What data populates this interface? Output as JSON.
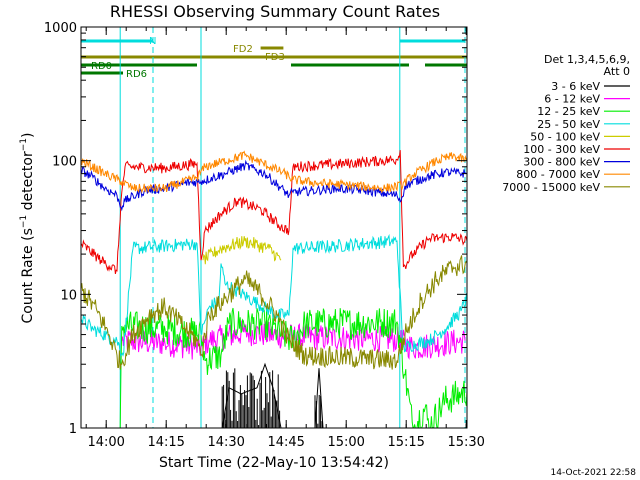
{
  "chart_data": {
    "type": "line",
    "title": "RHESSI Observing Summary Count Rates",
    "xlabel": "Start Time (22-May-10 13:54:42)",
    "ylabel": "Count Rate (s⁻¹ detector⁻¹)",
    "ylabel_main": "Count Rate (s",
    "ylabel_sup1": "−1",
    "ylabel_mid": " detector",
    "ylabel_sup2": "−1",
    "ylabel_end": ")",
    "x_unit": "minutes",
    "xlim": [
      -1.0,
      95.5
    ],
    "ylog": true,
    "ylim": [
      1,
      1000
    ],
    "x_ticks": [
      {
        "v": 5.3,
        "label": "14:00"
      },
      {
        "v": 20.3,
        "label": "14:15"
      },
      {
        "v": 35.3,
        "label": "14:30"
      },
      {
        "v": 50.3,
        "label": "14:45"
      },
      {
        "v": 65.3,
        "label": "15:00"
      },
      {
        "v": 80.3,
        "label": "15:15"
      },
      {
        "v": 95.3,
        "label": "15:30"
      }
    ],
    "y_ticks": [
      {
        "v": 1,
        "label": "1"
      },
      {
        "v": 10,
        "label": "10"
      },
      {
        "v": 100,
        "label": "100"
      },
      {
        "v": 1000,
        "label": "1000"
      }
    ],
    "legend": {
      "placement": "right",
      "header": [
        "Det 1,3,4,5,6,9,",
        "Att 0"
      ],
      "entries": [
        {
          "label": "3 - 6 keV",
          "color": "#000000"
        },
        {
          "label": "6 - 12 keV",
          "color": "#ff00ff"
        },
        {
          "label": "12 - 25 keV",
          "color": "#00ee00"
        },
        {
          "label": "25 - 50 keV",
          "color": "#00dddd"
        },
        {
          "label": "50 - 100 keV",
          "color": "#cccc00"
        },
        {
          "label": "100 - 300 keV",
          "color": "#ee0000"
        },
        {
          "label": "300 - 800 keV",
          "color": "#0000dd"
        },
        {
          "label": "800 - 7000 keV",
          "color": "#ff8800"
        },
        {
          "label": "7000 - 15000 keV",
          "color": "#888800"
        }
      ]
    },
    "vertical_lines": [
      {
        "x": 8.8,
        "style": "solid",
        "color": "#00dddd"
      },
      {
        "x": 17.0,
        "style": "dashed",
        "color": "#00dddd"
      },
      {
        "x": 29.0,
        "style": "solid",
        "color": "#00dddd"
      },
      {
        "x": 78.7,
        "style": "solid",
        "color": "#00dddd"
      },
      {
        "x": 95.0,
        "style": "dashed",
        "color": "#00dddd"
      }
    ],
    "flag_bars": [
      {
        "label": "N",
        "color": "#00dddd",
        "segments": [
          [
            -1.0,
            17.0
          ],
          [
            78.7,
            95.0
          ]
        ],
        "row": 0
      },
      {
        "label": "FD2",
        "color": "#888800",
        "segments": [
          [
            43.9,
            49.6
          ]
        ],
        "row": 1
      },
      {
        "label": "FD3",
        "color": "#888800",
        "segments": [
          [
            -1.0,
            95.5
          ]
        ],
        "row": 2
      },
      {
        "label": "RD0",
        "color": "#007700",
        "segments": [
          [
            -1.0,
            28.0
          ],
          [
            51.5,
            81.0
          ],
          [
            85.0,
            95.5
          ]
        ],
        "row": 3
      },
      {
        "label": "RD6",
        "color": "#007700",
        "segments": [
          [
            -1.0,
            9.5
          ]
        ],
        "row": 4
      }
    ],
    "series": [
      {
        "name": "3 - 6 keV",
        "color": "#000000",
        "noise": 0.0,
        "segments": [
          [
            [
              34.3,
              1.0
            ],
            [
              36.0,
              2.0
            ],
            [
              39.0,
              1.8
            ],
            [
              43.0,
              2.0
            ],
            [
              45.0,
              3.0
            ],
            [
              47.0,
              2.0
            ],
            [
              49.0,
              1.0
            ]
          ],
          [
            [
              57.5,
              1.0
            ],
            [
              58.5,
              2.8
            ],
            [
              59.5,
              1.0
            ]
          ]
        ]
      },
      {
        "name": "6 - 12 keV",
        "color": "#ff00ff",
        "noise": 0.1,
        "segments": [
          [
            [
              9.2,
              4.5
            ],
            [
              20.0,
              4.3
            ],
            [
              29.0,
              4.0
            ],
            [
              31.0,
              4.5
            ],
            [
              40.0,
              5.2
            ],
            [
              52.0,
              4.8
            ],
            [
              78.0,
              4.6
            ],
            [
              82.0,
              4.0
            ],
            [
              95.0,
              4.5
            ]
          ]
        ]
      },
      {
        "name": "12 - 25 keV",
        "color": "#00ee00",
        "noise": 0.12,
        "segments": [
          [
            [
              8.8,
              1.0
            ],
            [
              9.2,
              5.8
            ],
            [
              20.0,
              5.5
            ],
            [
              29.0,
              5.0
            ],
            [
              30.0,
              3.2
            ],
            [
              34.0,
              3.5
            ],
            [
              36.0,
              6.0
            ],
            [
              45.0,
              6.0
            ],
            [
              52.0,
              4.5
            ],
            [
              55.0,
              6.0
            ],
            [
              78.0,
              6.2
            ],
            [
              80.0,
              2.5
            ],
            [
              82.0,
              1.0
            ],
            [
              85.0,
              1.4
            ],
            [
              86.0,
              1.0
            ],
            [
              90.0,
              1.6
            ],
            [
              94.0,
              1.8
            ],
            [
              95.5,
              1.9
            ]
          ]
        ]
      },
      {
        "name": "25 - 50 keV",
        "color": "#00dddd",
        "noise": 0.05,
        "segments": [
          [
            [
              -1.0,
              6.5
            ],
            [
              2.0,
              5.5
            ],
            [
              8.0,
              4.5
            ],
            [
              9.5,
              3.5
            ],
            [
              12.0,
              22.0
            ],
            [
              20.0,
              23.0
            ],
            [
              28.0,
              24.0
            ],
            [
              29.0,
              5.0
            ],
            [
              31.0,
              8.0
            ],
            [
              33.5,
              9.0
            ],
            [
              34.0,
              17.0
            ],
            [
              35.0,
              12.0
            ],
            [
              42.0,
              9.0
            ],
            [
              48.0,
              7.0
            ],
            [
              51.0,
              7.0
            ],
            [
              52.0,
              22.0
            ],
            [
              63.0,
              23.0
            ],
            [
              70.0,
              24.0
            ],
            [
              78.0,
              25.0
            ],
            [
              79.5,
              4.0
            ],
            [
              86.0,
              4.5
            ],
            [
              90.0,
              5.5
            ],
            [
              94.0,
              7.5
            ],
            [
              95.5,
              9.5
            ]
          ]
        ]
      },
      {
        "name": "50 - 100 keV",
        "color": "#cccc00",
        "noise": 0.05,
        "segments": [
          [
            [
              29.5,
              18.0
            ],
            [
              34.0,
              22.0
            ],
            [
              40.0,
              25.0
            ],
            [
              46.0,
              22.0
            ],
            [
              49.0,
              18.0
            ]
          ]
        ]
      },
      {
        "name": "100 - 300 keV",
        "color": "#ee0000",
        "noise": 0.04,
        "segments": [
          [
            [
              -1.0,
              24.0
            ],
            [
              4.0,
              18.0
            ],
            [
              8.0,
              15.0
            ],
            [
              9.0,
              50.0
            ],
            [
              10.0,
              90.0
            ],
            [
              20.0,
              88.0
            ],
            [
              28.0,
              95.0
            ],
            [
              29.0,
              18.0
            ],
            [
              30.0,
              30.0
            ],
            [
              34.0,
              40.0
            ],
            [
              38.0,
              50.0
            ],
            [
              44.0,
              43.0
            ],
            [
              49.0,
              32.0
            ],
            [
              51.0,
              30.0
            ],
            [
              52.0,
              90.0
            ],
            [
              65.0,
              95.0
            ],
            [
              78.0,
              102.0
            ],
            [
              78.8,
              120.0
            ],
            [
              79.6,
              16.0
            ],
            [
              82.0,
              20.0
            ],
            [
              86.0,
              26.0
            ],
            [
              92.0,
              27.0
            ],
            [
              95.5,
              25.0
            ]
          ]
        ]
      },
      {
        "name": "300 - 800 keV",
        "color": "#0000dd",
        "noise": 0.035,
        "segments": [
          [
            [
              -1.0,
              85.0
            ],
            [
              2.0,
              75.0
            ],
            [
              5.0,
              62.0
            ],
            [
              8.0,
              55.0
            ],
            [
              9.0,
              45.0
            ],
            [
              10.0,
              50.0
            ],
            [
              15.0,
              60.0
            ],
            [
              20.0,
              62.0
            ],
            [
              25.0,
              68.0
            ],
            [
              29.0,
              70.0
            ],
            [
              35.0,
              80.0
            ],
            [
              40.0,
              92.0
            ],
            [
              45.0,
              80.0
            ],
            [
              51.0,
              55.0
            ],
            [
              52.0,
              58.0
            ],
            [
              58.0,
              60.0
            ],
            [
              63.0,
              62.0
            ],
            [
              70.0,
              60.0
            ],
            [
              78.0,
              55.0
            ],
            [
              79.0,
              50.0
            ],
            [
              80.0,
              65.0
            ],
            [
              85.0,
              75.0
            ],
            [
              90.0,
              82.0
            ],
            [
              95.5,
              80.0
            ]
          ]
        ]
      },
      {
        "name": "800 - 7000 keV",
        "color": "#ff8800",
        "noise": 0.035,
        "segments": [
          [
            [
              -1.0,
              100.0
            ],
            [
              5.0,
              80.0
            ],
            [
              9.0,
              70.0
            ],
            [
              12.0,
              62.0
            ],
            [
              20.0,
              62.0
            ],
            [
              28.0,
              75.0
            ],
            [
              30.0,
              90.0
            ],
            [
              40.0,
              110.0
            ],
            [
              50.0,
              80.0
            ],
            [
              52.0,
              72.0
            ],
            [
              58.0,
              68.0
            ],
            [
              65.0,
              66.0
            ],
            [
              75.0,
              62.0
            ],
            [
              79.0,
              65.0
            ],
            [
              82.0,
              78.0
            ],
            [
              88.0,
              100.0
            ],
            [
              92.0,
              108.0
            ],
            [
              95.5,
              100.0
            ]
          ]
        ]
      },
      {
        "name": "7000 - 15000 keV",
        "color": "#888800",
        "noise": 0.08,
        "segments": [
          [
            [
              -1.0,
              11.0
            ],
            [
              3.0,
              7.5
            ],
            [
              6.0,
              5.0
            ],
            [
              8.0,
              3.5
            ],
            [
              9.0,
              3.0
            ],
            [
              12.0,
              5.0
            ],
            [
              16.0,
              7.0
            ],
            [
              20.0,
              8.0
            ],
            [
              24.0,
              6.0
            ],
            [
              28.0,
              4.5
            ],
            [
              29.0,
              3.5
            ],
            [
              31.0,
              7.0
            ],
            [
              36.0,
              10.0
            ],
            [
              40.0,
              13.0
            ],
            [
              44.0,
              10.0
            ],
            [
              48.0,
              7.0
            ],
            [
              51.0,
              4.5
            ],
            [
              55.0,
              3.5
            ],
            [
              70.0,
              3.3
            ],
            [
              78.0,
              3.2
            ],
            [
              80.0,
              5.0
            ],
            [
              84.0,
              9.0
            ],
            [
              88.0,
              13.0
            ],
            [
              92.0,
              16.0
            ],
            [
              95.5,
              17.0
            ]
          ]
        ]
      }
    ]
  },
  "footer_date": "14-Oct-2021 22:58"
}
